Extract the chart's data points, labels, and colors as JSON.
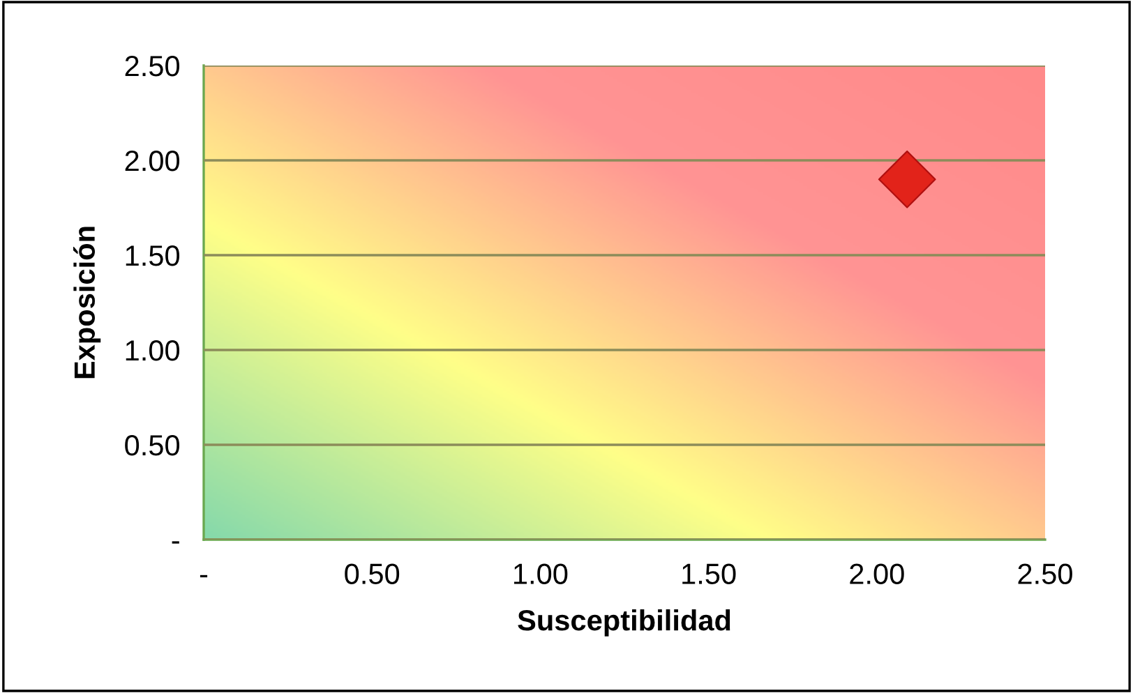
{
  "chart_data": {
    "type": "scatter",
    "xlabel": "Susceptibilidad",
    "ylabel": "Exposición",
    "x": [
      2.09
    ],
    "series": [
      {
        "color": "#e2231a",
        "values": [
          1.9
        ]
      }
    ],
    "marker": "diamond",
    "xlim": [
      0,
      2.5
    ],
    "ylim": [
      0,
      2.5
    ],
    "xticks": [
      {
        "value": 0,
        "label": "-"
      },
      {
        "value": 0.5,
        "label": "0.50"
      },
      {
        "value": 1,
        "label": "1.00"
      },
      {
        "value": 1.5,
        "label": "1.50"
      },
      {
        "value": 2,
        "label": "2.00"
      },
      {
        "value": 2.5,
        "label": "2.50"
      }
    ],
    "yticks": [
      {
        "value": 0,
        "label": "-"
      },
      {
        "value": 0.5,
        "label": "0.50"
      },
      {
        "value": 1,
        "label": "1.00"
      },
      {
        "value": 1.5,
        "label": "1.50"
      },
      {
        "value": 2,
        "label": "2.00"
      },
      {
        "value": 2.5,
        "label": "2.50"
      }
    ],
    "grid": "y",
    "legend": false
  }
}
